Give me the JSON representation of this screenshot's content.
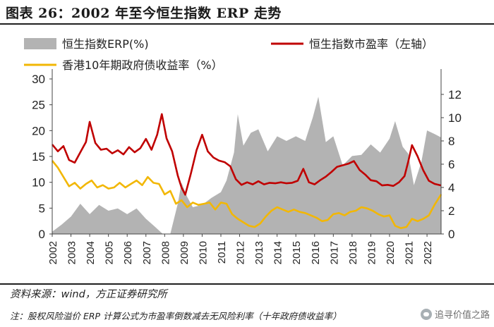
{
  "figure": {
    "title": "图表 26：2002 年至今恒生指数 ERP 走势",
    "source": "资料来源：wind，方正证券研究所",
    "note": "注：股权风险溢价 ERP 计算公式为市盈率倒数减去无风险利率（十年政府债收益率）",
    "watermark": "追寻价值之路"
  },
  "colors": {
    "erp": "#b3b3b3",
    "pe": "#c00000",
    "yield": "#f2b705",
    "axis": "#444444"
  },
  "chart_data": {
    "type": "area+line",
    "title": "",
    "x_ticks": [
      "2002",
      "2003",
      "2004",
      "2005",
      "2006",
      "2007",
      "2008",
      "2009",
      "2010",
      "2011",
      "2012",
      "2013",
      "2014",
      "2015",
      "2016",
      "2017",
      "2018",
      "2019",
      "2020",
      "2021",
      "2022"
    ],
    "x_range": [
      2002.0,
      2022.75
    ],
    "left_axis": {
      "ticks": [
        0,
        5,
        10,
        15,
        20,
        25,
        30
      ],
      "range": [
        0,
        30
      ]
    },
    "right_axis": {
      "ticks": [
        0,
        2,
        4,
        6,
        8,
        10,
        12
      ],
      "range": [
        0,
        13.33
      ]
    },
    "legend": [
      {
        "label": "恒生指数ERP(%)",
        "kind": "area",
        "series": "erp"
      },
      {
        "label": "恒生指数市盈率（左轴）",
        "kind": "line",
        "series": "pe"
      },
      {
        "label": "香港10年期政府债收益率（%）",
        "kind": "line",
        "series": "yield"
      }
    ],
    "series": [
      {
        "name": "恒生指数ERP(%)",
        "key": "erp",
        "axis": "right",
        "type": "area",
        "x": [
          2002.0,
          2002.5,
          2003.0,
          2003.5,
          2004.0,
          2004.5,
          2005.0,
          2005.5,
          2006.0,
          2006.5,
          2007.0,
          2007.5,
          2007.9,
          2008.3,
          2008.7,
          2008.9,
          2009.2,
          2009.5,
          2010.0,
          2010.5,
          2011.0,
          2011.3,
          2011.7,
          2011.9,
          2012.2,
          2012.6,
          2013.0,
          2013.5,
          2014.0,
          2014.5,
          2015.0,
          2015.5,
          2015.9,
          2016.2,
          2016.6,
          2017.0,
          2017.5,
          2018.0,
          2018.5,
          2019.0,
          2019.5,
          2020.0,
          2020.3,
          2020.7,
          2021.0,
          2021.3,
          2021.7,
          2022.0,
          2022.4,
          2022.75
        ],
        "y": [
          0.2,
          0.8,
          1.5,
          2.6,
          1.7,
          2.5,
          2.0,
          2.2,
          1.7,
          2.2,
          1.3,
          0.6,
          0.0,
          0.0,
          2.6,
          4.4,
          3.2,
          2.3,
          2.5,
          3.1,
          3.6,
          4.6,
          7.0,
          10.3,
          7.6,
          8.7,
          9.0,
          7.1,
          8.4,
          8.0,
          8.4,
          8.0,
          10.0,
          11.8,
          7.9,
          8.4,
          5.9,
          6.7,
          6.8,
          7.7,
          7.0,
          8.2,
          9.7,
          7.5,
          6.9,
          4.2,
          6.2,
          8.9,
          8.6,
          8.3
        ]
      },
      {
        "name": "恒生指数市盈率（左轴）",
        "key": "pe",
        "axis": "left",
        "type": "line",
        "x": [
          2002.0,
          2002.3,
          2002.6,
          2002.9,
          2003.2,
          2003.5,
          2003.8,
          2004.0,
          2004.3,
          2004.6,
          2004.9,
          2005.2,
          2005.5,
          2005.8,
          2006.1,
          2006.4,
          2006.7,
          2007.0,
          2007.3,
          2007.6,
          2007.85,
          2008.1,
          2008.4,
          2008.7,
          2008.9,
          2009.1,
          2009.4,
          2009.7,
          2010.0,
          2010.3,
          2010.6,
          2010.9,
          2011.2,
          2011.5,
          2011.8,
          2012.1,
          2012.4,
          2012.7,
          2013.0,
          2013.3,
          2013.6,
          2013.9,
          2014.2,
          2014.5,
          2014.8,
          2015.1,
          2015.4,
          2015.7,
          2016.0,
          2016.3,
          2016.6,
          2016.9,
          2017.2,
          2017.5,
          2017.8,
          2018.1,
          2018.4,
          2018.7,
          2019.0,
          2019.3,
          2019.6,
          2019.9,
          2020.2,
          2020.5,
          2020.8,
          2021.0,
          2021.2,
          2021.5,
          2021.8,
          2022.1,
          2022.4,
          2022.75
        ],
        "y": [
          17.3,
          16.0,
          17.0,
          14.3,
          13.8,
          15.8,
          17.8,
          21.7,
          17.6,
          16.3,
          16.5,
          15.6,
          16.2,
          15.4,
          16.8,
          15.8,
          16.6,
          18.4,
          16.3,
          19.2,
          23.2,
          18.5,
          16.0,
          11.3,
          9.0,
          7.6,
          11.7,
          16.2,
          19.2,
          16.0,
          14.8,
          14.2,
          13.9,
          13.1,
          10.6,
          9.5,
          10.0,
          9.6,
          10.2,
          9.6,
          9.9,
          9.8,
          10.0,
          9.8,
          9.9,
          10.3,
          12.6,
          10.0,
          9.6,
          10.4,
          11.1,
          12.0,
          13.0,
          13.3,
          13.6,
          14.1,
          12.4,
          11.5,
          10.4,
          10.2,
          9.4,
          9.5,
          9.3,
          10.0,
          11.2,
          14.0,
          17.2,
          15.0,
          12.3,
          10.3,
          9.7,
          9.4
        ]
      },
      {
        "name": "香港10年期政府债收益率（%）",
        "key": "yield",
        "axis": "right",
        "type": "line",
        "x": [
          2002.0,
          2002.3,
          2002.6,
          2002.9,
          2003.2,
          2003.5,
          2003.8,
          2004.1,
          2004.4,
          2004.7,
          2005.0,
          2005.3,
          2005.6,
          2005.9,
          2006.2,
          2006.5,
          2006.8,
          2007.1,
          2007.4,
          2007.7,
          2008.0,
          2008.3,
          2008.6,
          2008.9,
          2009.2,
          2009.5,
          2009.8,
          2010.1,
          2010.4,
          2010.7,
          2011.0,
          2011.3,
          2011.6,
          2011.9,
          2012.2,
          2012.5,
          2012.8,
          2013.1,
          2013.4,
          2013.7,
          2014.0,
          2014.3,
          2014.6,
          2014.9,
          2015.2,
          2015.5,
          2015.8,
          2016.1,
          2016.4,
          2016.7,
          2017.0,
          2017.3,
          2017.6,
          2017.9,
          2018.2,
          2018.5,
          2018.8,
          2019.1,
          2019.4,
          2019.7,
          2020.0,
          2020.3,
          2020.6,
          2020.9,
          2021.2,
          2021.5,
          2021.8,
          2022.1,
          2022.4,
          2022.75
        ],
        "y": [
          6.3,
          5.7,
          4.9,
          4.1,
          4.4,
          3.9,
          4.3,
          4.6,
          4.0,
          4.2,
          3.9,
          4.0,
          4.4,
          4.0,
          4.3,
          4.6,
          4.2,
          4.9,
          4.4,
          4.3,
          3.4,
          3.7,
          2.6,
          2.9,
          2.3,
          2.7,
          2.5,
          2.6,
          2.7,
          2.1,
          2.7,
          2.6,
          1.7,
          1.3,
          1.0,
          0.7,
          0.6,
          0.9,
          1.5,
          2.0,
          2.3,
          2.1,
          1.9,
          2.1,
          1.9,
          1.8,
          1.6,
          1.4,
          1.1,
          1.2,
          1.7,
          1.8,
          1.6,
          1.9,
          2.0,
          2.3,
          2.2,
          2.0,
          1.7,
          1.5,
          1.6,
          0.7,
          0.5,
          0.6,
          1.3,
          1.1,
          1.3,
          1.6,
          2.5,
          3.4
        ]
      }
    ]
  }
}
